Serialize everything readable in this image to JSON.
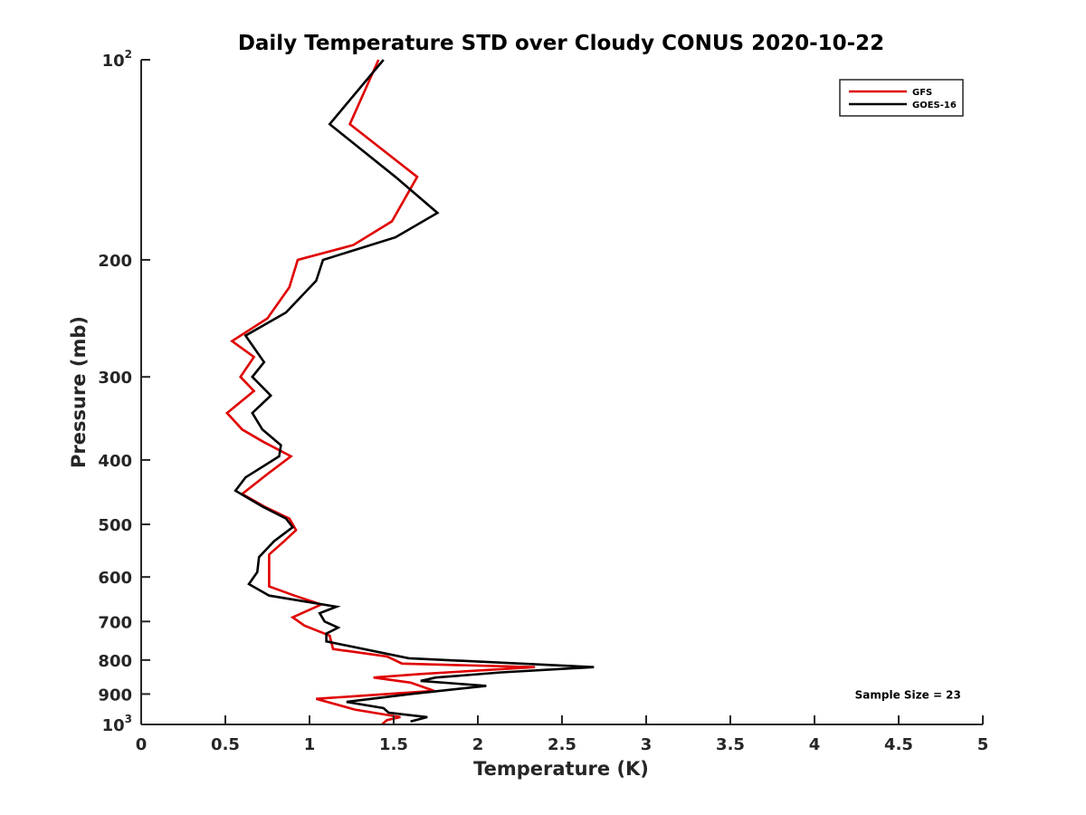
{
  "chart_data": {
    "type": "line",
    "title": "Daily Temperature STD over Cloudy CONUS 2020-10-22",
    "xlabel": "Temperature (K)",
    "ylabel": "Pressure (mb)",
    "xlim": [
      0,
      5
    ],
    "ylim": [
      100,
      1000
    ],
    "y_scale": "log",
    "y_reversed": true,
    "grid": false,
    "legend_position": "top-right",
    "x_ticks": [
      0,
      0.5,
      1,
      1.5,
      2,
      2.5,
      3,
      3.5,
      4,
      4.5,
      5
    ],
    "x_tick_labels": [
      "0",
      "0.5",
      "1",
      "1.5",
      "2",
      "2.5",
      "3",
      "3.5",
      "4",
      "4.5",
      "5"
    ],
    "y_ticks": [
      {
        "value": 100,
        "base": "10",
        "exp": "2",
        "label": ""
      },
      {
        "value": 200,
        "label": "200"
      },
      {
        "value": 300,
        "label": "300"
      },
      {
        "value": 400,
        "label": "400"
      },
      {
        "value": 500,
        "label": "500"
      },
      {
        "value": 600,
        "label": "600"
      },
      {
        "value": 700,
        "label": "700"
      },
      {
        "value": 800,
        "label": "800"
      },
      {
        "value": 900,
        "label": "900"
      },
      {
        "value": 1000,
        "base": "10",
        "exp": "3",
        "label": ""
      }
    ],
    "series": [
      {
        "name": "GFS",
        "color": "#e00000",
        "points": [
          [
            1.41,
            100
          ],
          [
            1.24,
            125
          ],
          [
            1.64,
            150
          ],
          [
            1.49,
            175
          ],
          [
            1.26,
            190
          ],
          [
            0.93,
            200
          ],
          [
            0.88,
            220
          ],
          [
            0.75,
            245
          ],
          [
            0.54,
            265
          ],
          [
            0.67,
            280
          ],
          [
            0.59,
            300
          ],
          [
            0.67,
            315
          ],
          [
            0.51,
            340
          ],
          [
            0.6,
            360
          ],
          [
            0.72,
            375
          ],
          [
            0.89,
            395
          ],
          [
            0.75,
            420
          ],
          [
            0.6,
            450
          ],
          [
            0.73,
            470
          ],
          [
            0.88,
            490
          ],
          [
            0.92,
            510
          ],
          [
            0.85,
            530
          ],
          [
            0.76,
            555
          ],
          [
            0.76,
            595
          ],
          [
            0.76,
            620
          ],
          [
            0.91,
            640
          ],
          [
            1.07,
            660
          ],
          [
            0.9,
            690
          ],
          [
            0.97,
            710
          ],
          [
            1.12,
            735
          ],
          [
            1.14,
            770
          ],
          [
            1.46,
            790
          ],
          [
            1.55,
            810
          ],
          [
            2.34,
            820
          ],
          [
            1.65,
            840
          ],
          [
            1.38,
            850
          ],
          [
            1.6,
            865
          ],
          [
            1.74,
            890
          ],
          [
            1.04,
            915
          ],
          [
            1.27,
            950
          ],
          [
            1.54,
            975
          ],
          [
            1.46,
            985
          ],
          [
            1.43,
            1000
          ]
        ]
      },
      {
        "name": "GOES-16",
        "color": "#000000",
        "points": [
          [
            1.44,
            100
          ],
          [
            1.12,
            125
          ],
          [
            1.51,
            150
          ],
          [
            1.76,
            170
          ],
          [
            1.51,
            185
          ],
          [
            1.08,
            200
          ],
          [
            1.04,
            215
          ],
          [
            0.86,
            240
          ],
          [
            0.62,
            260
          ],
          [
            0.73,
            285
          ],
          [
            0.66,
            300
          ],
          [
            0.77,
            320
          ],
          [
            0.66,
            340
          ],
          [
            0.72,
            360
          ],
          [
            0.83,
            380
          ],
          [
            0.82,
            395
          ],
          [
            0.62,
            425
          ],
          [
            0.56,
            445
          ],
          [
            0.72,
            470
          ],
          [
            0.86,
            490
          ],
          [
            0.9,
            505
          ],
          [
            0.79,
            530
          ],
          [
            0.7,
            560
          ],
          [
            0.69,
            590
          ],
          [
            0.64,
            615
          ],
          [
            0.76,
            640
          ],
          [
            1.16,
            665
          ],
          [
            1.06,
            680
          ],
          [
            1.09,
            700
          ],
          [
            1.17,
            715
          ],
          [
            1.1,
            730
          ],
          [
            1.1,
            750
          ],
          [
            1.59,
            795
          ],
          [
            2.69,
            820
          ],
          [
            2.14,
            835
          ],
          [
            1.75,
            850
          ],
          [
            1.66,
            860
          ],
          [
            2.05,
            875
          ],
          [
            1.6,
            900
          ],
          [
            1.22,
            925
          ],
          [
            1.44,
            945
          ],
          [
            1.47,
            960
          ],
          [
            1.7,
            975
          ],
          [
            1.6,
            990
          ]
        ]
      }
    ],
    "annotations": [
      {
        "text": "Sample Size = 23",
        "x": 4.24,
        "y": 900
      }
    ]
  }
}
